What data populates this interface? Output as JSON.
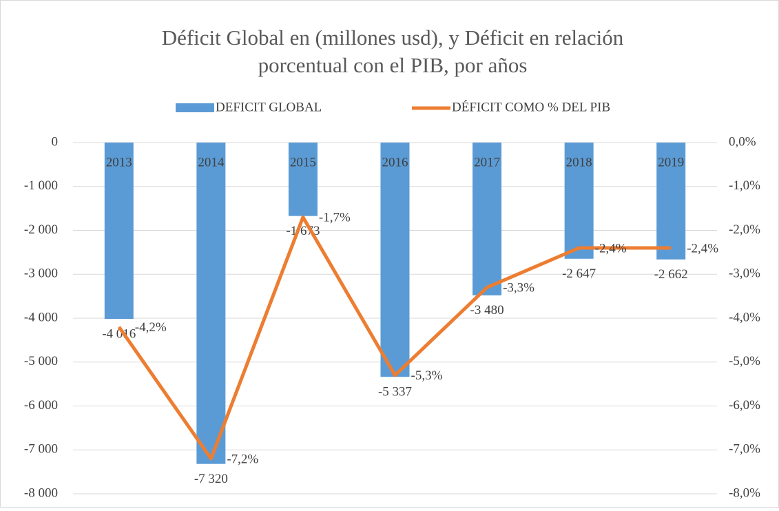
{
  "chart_data": {
    "type": "combo",
    "title": [
      "Déficit Global en (millones usd), y Déficit en relación",
      "porcentual con el PIB, por años"
    ],
    "categories": [
      "2013",
      "2014",
      "2015",
      "2016",
      "2017",
      "2018",
      "2019"
    ],
    "series": [
      {
        "name": "DEFICIT GLOBAL",
        "type": "bar",
        "color": "#5b9bd5",
        "values": [
          -4016,
          -7320,
          -1673,
          -5337,
          -3480,
          -2647,
          -2662
        ],
        "value_labels": [
          "-4 016",
          "-7 320",
          "-1 673",
          "-5 337",
          "-3 480",
          "-2 647",
          "-2 662"
        ]
      },
      {
        "name": "DÉFICIT COMO % DEL PIB",
        "type": "line",
        "axis": "y2",
        "color": "#ed7d31",
        "values": [
          -4.2,
          -7.2,
          -1.7,
          -5.3,
          -3.3,
          -2.4,
          -2.4
        ],
        "value_labels": [
          "-4,2%",
          "-7,2%",
          "-1,7%",
          "-5,3%",
          "-3,3%",
          "-2,4%",
          "-2,4%"
        ]
      }
    ],
    "ylim": [
      -8000,
      0
    ],
    "yticks": [
      0,
      {
        "value": -1000,
        "label": "-1 000"
      },
      {
        "value": -2000,
        "label": "-2 000"
      },
      {
        "value": -3000,
        "label": "-3 000"
      },
      {
        "value": -4000,
        "label": "-4 000"
      },
      {
        "value": -5000,
        "label": "-5 000"
      },
      {
        "value": -6000,
        "label": "-6 000"
      },
      {
        "value": -7000,
        "label": "-7 000"
      },
      {
        "value": -8000,
        "label": "-8 000"
      }
    ],
    "y2lim": [
      -8,
      0
    ],
    "y2ticks": [
      {
        "value": 0,
        "label": "0,0%"
      },
      {
        "value": -1,
        "label": "-1,0%"
      },
      {
        "value": -2,
        "label": "-2,0%"
      },
      {
        "value": -3,
        "label": "-3,0%"
      },
      {
        "value": -4,
        "label": "-4,0%"
      },
      {
        "value": -5,
        "label": "-5,0%"
      },
      {
        "value": -6,
        "label": "-6,0%"
      },
      {
        "value": -7,
        "label": "-7,0%"
      },
      {
        "value": -8,
        "label": "-8,0%"
      }
    ],
    "grid": true,
    "legend": "top"
  }
}
